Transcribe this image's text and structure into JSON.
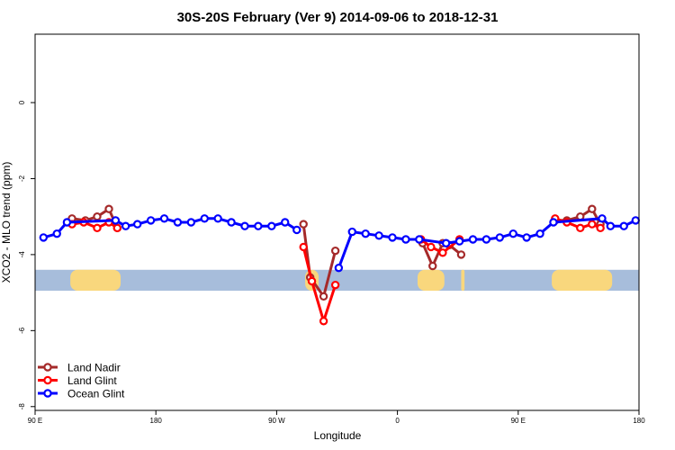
{
  "chart_data": {
    "type": "line",
    "title": "30S-20S February (Ver 9)   2014-09-06 to 2018-12-31",
    "xlabel": "Longitude",
    "ylabel": "XCO2 - MLO trend (ppm)",
    "xlim": [
      0,
      360
    ],
    "ylim": [
      -8.1,
      1.8
    ],
    "xticks": [
      {
        "value": 0,
        "label": "90 E"
      },
      {
        "value": 72,
        "label": "180"
      },
      {
        "value": 144,
        "label": "90 W"
      },
      {
        "value": 216,
        "label": "0"
      },
      {
        "value": 288,
        "label": "90 E"
      },
      {
        "value": 360,
        "label": "180"
      }
    ],
    "yticks": [
      {
        "value": 0,
        "label": "0"
      },
      {
        "value": -2,
        "label": "-2"
      },
      {
        "value": -4,
        "label": "-4"
      },
      {
        "value": -6,
        "label": "-6"
      },
      {
        "value": -8,
        "label": "-8"
      }
    ],
    "grid": false,
    "legend": "bottom-left",
    "map_band": {
      "y_top": -4.4,
      "y_bottom": -4.95,
      "ocean_color": "#A7BDDB",
      "land_color": "#F9D77D",
      "land_spans": [
        [
          21,
          51
        ],
        [
          161,
          169
        ],
        [
          228,
          244
        ],
        [
          254,
          256
        ],
        [
          308,
          344
        ]
      ]
    },
    "series": [
      {
        "name": "Land Nadir",
        "color": "#A52A2A",
        "segments": [
          [
            [
              22,
              -3.05
            ],
            [
              30,
              -3.1
            ],
            [
              37,
              -3.0
            ],
            [
              44,
              -2.8
            ],
            [
              49,
              -3.3
            ]
          ],
          [
            [
              160,
              -3.2
            ],
            [
              164,
              -4.6
            ],
            [
              172,
              -5.1
            ],
            [
              179,
              -3.9
            ]
          ],
          [
            [
              231,
              -3.7
            ],
            [
              237,
              -4.3
            ],
            [
              243,
              -3.7
            ],
            [
              247,
              -3.75
            ],
            [
              254,
              -4.0
            ]
          ],
          [
            [
              310,
              -3.1
            ],
            [
              317,
              -3.1
            ],
            [
              325,
              -3.0
            ],
            [
              332,
              -2.8
            ],
            [
              337,
              -3.2
            ]
          ]
        ]
      },
      {
        "name": "Land Glint",
        "color": "#FF0000",
        "segments": [
          [
            [
              22,
              -3.2
            ],
            [
              29,
              -3.15
            ],
            [
              37,
              -3.3
            ],
            [
              44,
              -3.15
            ],
            [
              49,
              -3.3
            ]
          ],
          [
            [
              160,
              -3.8
            ],
            [
              165,
              -4.7
            ],
            [
              172,
              -5.75
            ],
            [
              179,
              -4.8
            ]
          ],
          [
            [
              230,
              -3.6
            ],
            [
              236,
              -3.8
            ],
            [
              243,
              -3.95
            ],
            [
              253,
              -3.6
            ]
          ],
          [
            [
              310,
              -3.05
            ],
            [
              317,
              -3.15
            ],
            [
              325,
              -3.3
            ],
            [
              332,
              -3.2
            ],
            [
              337,
              -3.3
            ]
          ]
        ]
      },
      {
        "name": "Ocean Glint",
        "color": "#0000FF",
        "segments": [
          [
            [
              5,
              -3.55
            ],
            [
              13,
              -3.45
            ],
            [
              19,
              -3.15
            ],
            [
              48,
              -3.1
            ],
            [
              54,
              -3.25
            ],
            [
              61,
              -3.2
            ],
            [
              69,
              -3.1
            ],
            [
              77,
              -3.05
            ],
            [
              85,
              -3.15
            ],
            [
              93,
              -3.15
            ],
            [
              101,
              -3.05
            ],
            [
              109,
              -3.05
            ],
            [
              117,
              -3.15
            ],
            [
              125,
              -3.25
            ],
            [
              133,
              -3.25
            ],
            [
              141,
              -3.25
            ],
            [
              149,
              -3.15
            ],
            [
              156,
              -3.35
            ]
          ],
          [
            [
              181,
              -4.35
            ],
            [
              189,
              -3.4
            ],
            [
              197,
              -3.45
            ],
            [
              205,
              -3.5
            ],
            [
              213,
              -3.55
            ],
            [
              221,
              -3.6
            ],
            [
              229,
              -3.6
            ],
            [
              245,
              -3.7
            ],
            [
              253,
              -3.65
            ],
            [
              261,
              -3.6
            ],
            [
              269,
              -3.6
            ],
            [
              277,
              -3.55
            ],
            [
              285,
              -3.45
            ],
            [
              293,
              -3.55
            ],
            [
              301,
              -3.45
            ],
            [
              309,
              -3.15
            ],
            [
              338,
              -3.05
            ],
            [
              343,
              -3.25
            ],
            [
              351,
              -3.25
            ],
            [
              358,
              -3.1
            ]
          ]
        ]
      }
    ]
  }
}
